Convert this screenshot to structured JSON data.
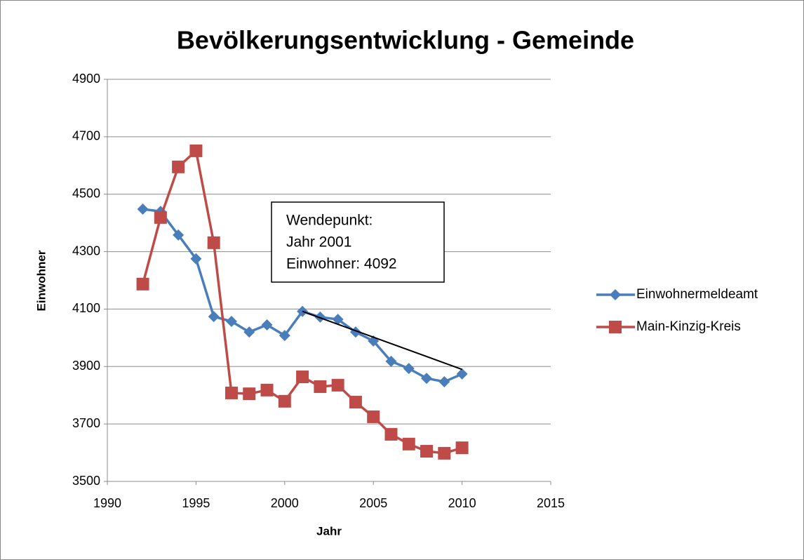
{
  "chart_data": {
    "type": "line",
    "title": "Bevölkerungsentwicklung - Gemeinde",
    "x_label": "Jahr",
    "y_label": "Einwohner",
    "x": [
      1992,
      1993,
      1994,
      1995,
      1996,
      1997,
      1998,
      1999,
      2000,
      2001,
      2002,
      2003,
      2004,
      2005,
      2006,
      2007,
      2008,
      2009,
      2010
    ],
    "series": [
      {
        "name": "Einwohnermeldeamt",
        "color": "#4a7ebb",
        "marker": "diamond",
        "values": [
          4448,
          4440,
          4358,
          4275,
          4074,
          4057,
          4020,
          4045,
          4008,
          4092,
          4072,
          4064,
          4020,
          3989,
          3918,
          3893,
          3859,
          3847,
          3874
        ]
      },
      {
        "name": "Main-Kinzig-Kreis",
        "color": "#be4b48",
        "marker": "square",
        "values": [
          4187,
          4419,
          4595,
          4651,
          4331,
          3808,
          3805,
          3818,
          3779,
          3864,
          3830,
          3835,
          3776,
          3725,
          3664,
          3630,
          3605,
          3598,
          3617
        ]
      }
    ],
    "trendline": {
      "x": [
        2001,
        2010
      ],
      "values": [
        4092,
        3890
      ],
      "color": "#000000"
    },
    "annotation": [
      "Wendepunkt:",
      "Jahr 2001",
      "Einwohner: 4092"
    ],
    "xlim": [
      1990,
      2015
    ],
    "xticks": [
      1990,
      1995,
      2000,
      2005,
      2010,
      2015
    ],
    "ylim": [
      3500,
      4900
    ],
    "yticks": [
      3500,
      3700,
      3900,
      4100,
      4300,
      4500,
      4700,
      4900
    ],
    "grid": true,
    "legend": "right"
  }
}
